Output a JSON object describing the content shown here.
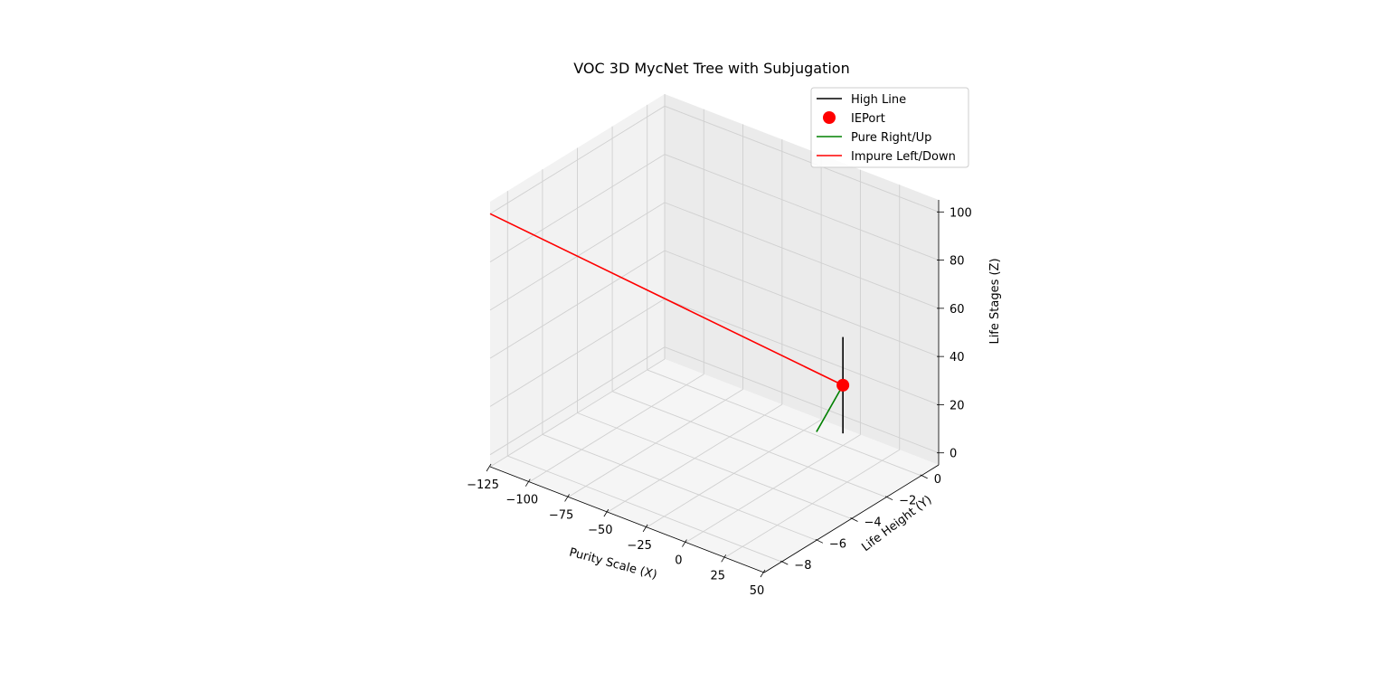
{
  "chart_data": {
    "type": "line",
    "projection": "3d",
    "title": "VOC 3D MycNet Tree with Subjugation",
    "xlabel": "Purity Scale (X)",
    "ylabel": "Life Height (Y)",
    "zlabel": "Life Stages (Z)",
    "xlim": [
      -125,
      50
    ],
    "ylim": [
      -9,
      1
    ],
    "zlim": [
      -5,
      105
    ],
    "xticks": [
      -125,
      -100,
      -75,
      -50,
      -25,
      0,
      25,
      50
    ],
    "xtick_labels": [
      "−125",
      "−100",
      "−75",
      "−50",
      "−25",
      "0",
      "25",
      "50"
    ],
    "yticks": [
      0,
      -2,
      -4,
      -6,
      -8
    ],
    "ytick_labels": [
      "0",
      "−2",
      "−4",
      "−6",
      "−8"
    ],
    "zticks": [
      0,
      20,
      40,
      60,
      80,
      100
    ],
    "ztick_labels": [
      "0",
      "20",
      "40",
      "60",
      "80",
      "100"
    ],
    "grid": true,
    "legend_position": "top-right",
    "series": [
      {
        "name": "High Line",
        "kind": "line",
        "color": "#000000",
        "x": [
          0,
          0
        ],
        "y": [
          0,
          0
        ],
        "z": [
          0,
          40
        ]
      },
      {
        "name": "IEPort",
        "kind": "scatter",
        "color": "#ff0000",
        "x": [
          0
        ],
        "y": [
          0
        ],
        "z": [
          20
        ]
      },
      {
        "name": "Pure Right/Up",
        "kind": "line",
        "color": "#008000",
        "x": [
          0,
          50
        ],
        "y": [
          0,
          -6
        ],
        "z": [
          20,
          40
        ]
      },
      {
        "name": "Impure Left/Down",
        "kind": "line",
        "color": "#ff0000",
        "x": [
          0,
          -125
        ],
        "y": [
          0,
          -9
        ],
        "z": [
          20,
          100
        ]
      }
    ]
  }
}
